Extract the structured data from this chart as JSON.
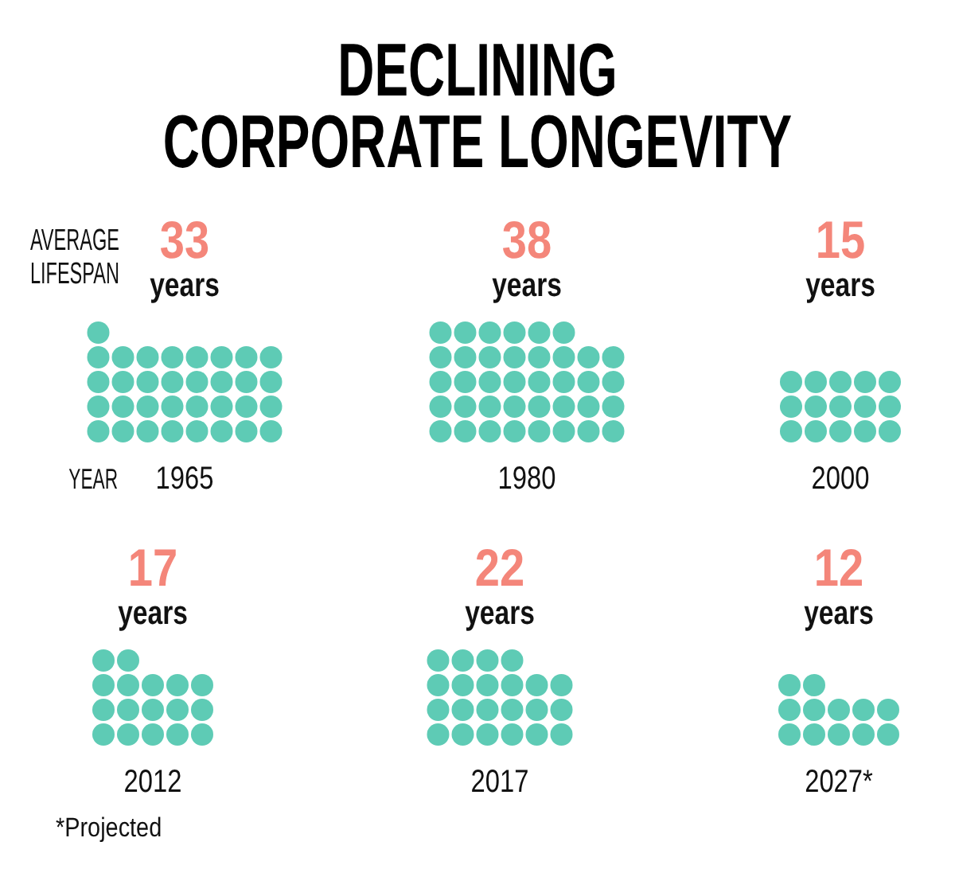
{
  "chart_data": [
    {
      "type": "other",
      "title": "DECLINING\nCORPORATE LONGEVITY",
      "ylabel": "AVERAGE LIFESPAN",
      "xlabel": "YEAR",
      "categories": [
        "1965",
        "1980",
        "2000"
      ],
      "values": [
        33,
        38,
        15
      ],
      "value_labels": [
        "33 years",
        "38 years",
        "15 years"
      ],
      "color": "#5ecbb5"
    },
    {
      "type": "other",
      "categories": [
        "2012",
        "2017",
        "2027*"
      ],
      "values": [
        17,
        22,
        12
      ],
      "value_labels": [
        "17 years",
        "22 years",
        "12 years"
      ],
      "color": "#5ecbb5",
      "annotations": [
        "*Projected"
      ]
    }
  ]
}
